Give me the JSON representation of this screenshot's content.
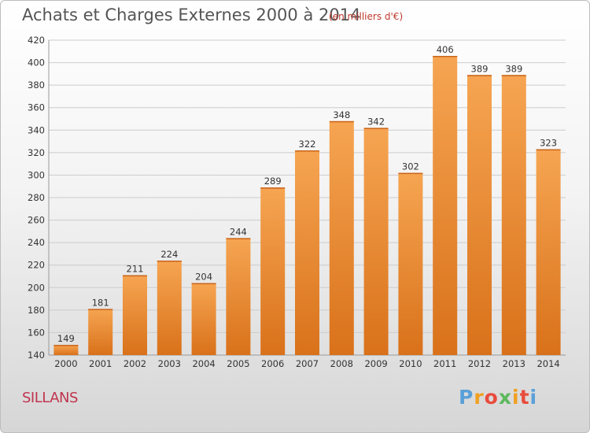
{
  "title": "Achats et Charges Externes 2000 à 2014",
  "subtitle": "(en milliers d'€)",
  "commune": "SILLANS",
  "logo_text": "Proxiti",
  "logo_colors": [
    "#5aa0d8",
    "#f0a020",
    "#e84c3d",
    "#5cb85c",
    "#f0a020",
    "#e84c3d",
    "#5aa0d8"
  ],
  "colors": {
    "bar_light": "#f6a552",
    "bar_dark": "#d9711a",
    "grid": "#cccccc",
    "axis_text": "#333333"
  },
  "chart_data": {
    "type": "bar",
    "title": "Achats et Charges Externes 2000 à 2014",
    "subtitle": "(en milliers d'€)",
    "categories": [
      "2000",
      "2001",
      "2002",
      "2003",
      "2004",
      "2005",
      "2006",
      "2007",
      "2008",
      "2009",
      "2010",
      "2011",
      "2012",
      "2013",
      "2014"
    ],
    "values": [
      149,
      181,
      211,
      224,
      204,
      244,
      289,
      322,
      348,
      342,
      302,
      406,
      389,
      389,
      323
    ],
    "ylim": [
      140,
      420
    ],
    "yticks": [
      140,
      160,
      180,
      200,
      220,
      240,
      260,
      280,
      300,
      320,
      340,
      360,
      380,
      400,
      420
    ],
    "grid": true,
    "data_labels": true
  }
}
